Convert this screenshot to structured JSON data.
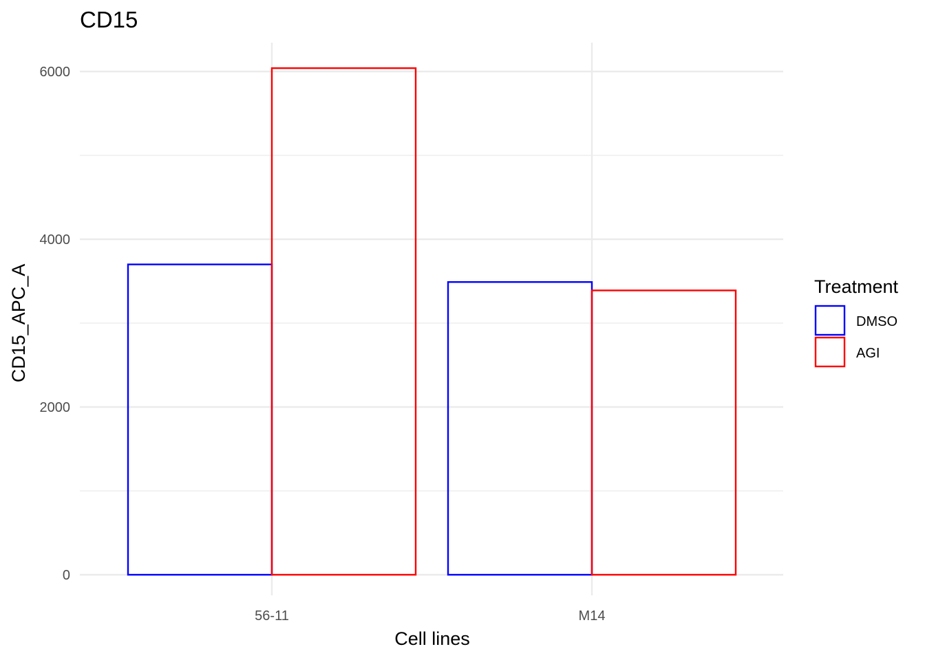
{
  "chart_data": {
    "type": "bar",
    "title": "CD15",
    "xlabel": "Cell lines",
    "ylabel": "CD15_APC_A",
    "categories": [
      "56-11",
      "M14"
    ],
    "series": [
      {
        "name": "DMSO",
        "color": "#0000ff",
        "values": [
          3700,
          3490
        ]
      },
      {
        "name": "AGI",
        "color": "#ff0000",
        "values": [
          6040,
          3390
        ]
      }
    ],
    "ylim": [
      0,
      6000
    ],
    "yticks": [
      0,
      2000,
      4000,
      6000
    ],
    "grid": true,
    "legend": {
      "title": "Treatment",
      "position": "right"
    }
  }
}
